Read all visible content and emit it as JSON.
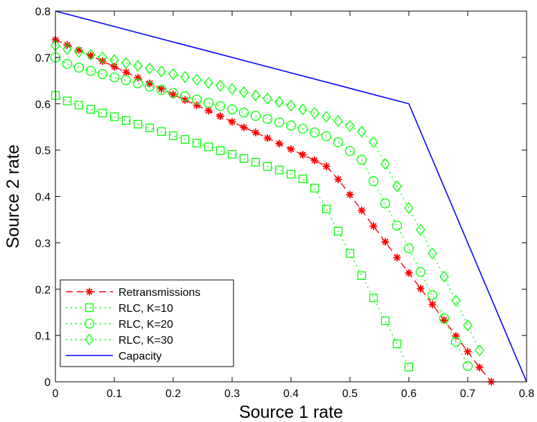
{
  "chart_data": {
    "type": "line",
    "xlabel": "Source 1 rate",
    "ylabel": "Source 2 rate",
    "xlim": [
      0,
      0.8
    ],
    "ylim": [
      0,
      0.8
    ],
    "xticks": [
      0,
      0.1,
      0.2,
      0.3,
      0.4,
      0.5,
      0.6,
      0.7,
      0.8
    ],
    "yticks": [
      0,
      0.1,
      0.2,
      0.3,
      0.4,
      0.5,
      0.6,
      0.7,
      0.8
    ],
    "xtick_labels": [
      "0",
      "0.1",
      "0.2",
      "0.3",
      "0.4",
      "0.5",
      "0.6",
      "0.7",
      "0.8"
    ],
    "ytick_labels": [
      "0",
      "0.1",
      "0.2",
      "0.3",
      "0.4",
      "0.5",
      "0.6",
      "0.7",
      "0.8"
    ],
    "grid": false,
    "legend_position": "bottom-left",
    "series": [
      {
        "name": "Retransmissions",
        "color": "#ff0000",
        "line_style": "dashed",
        "marker": "asterisk",
        "x": [
          0,
          0.02,
          0.04,
          0.06,
          0.08,
          0.1,
          0.12,
          0.14,
          0.16,
          0.18,
          0.2,
          0.22,
          0.24,
          0.26,
          0.28,
          0.3,
          0.32,
          0.34,
          0.36,
          0.38,
          0.4,
          0.42,
          0.44,
          0.46,
          0.48,
          0.5,
          0.52,
          0.54,
          0.56,
          0.58,
          0.6,
          0.62,
          0.64,
          0.66,
          0.68,
          0.7,
          0.72,
          0.74
        ],
        "y": [
          0.738,
          0.727,
          0.716,
          0.704,
          0.692,
          0.68,
          0.668,
          0.656,
          0.644,
          0.632,
          0.62,
          0.608,
          0.597,
          0.585,
          0.573,
          0.561,
          0.549,
          0.538,
          0.526,
          0.514,
          0.502,
          0.49,
          0.478,
          0.465,
          0.437,
          0.404,
          0.37,
          0.336,
          0.302,
          0.268,
          0.235,
          0.201,
          0.167,
          0.133,
          0.099,
          0.065,
          0.031,
          0.0
        ]
      },
      {
        "name": "RLC, K=10",
        "color": "#00ff00",
        "line_style": "dotted",
        "marker": "square",
        "x": [
          0,
          0.02,
          0.04,
          0.06,
          0.08,
          0.1,
          0.12,
          0.14,
          0.16,
          0.18,
          0.2,
          0.22,
          0.24,
          0.26,
          0.28,
          0.3,
          0.32,
          0.34,
          0.36,
          0.38,
          0.4,
          0.42,
          0.44,
          0.46,
          0.48,
          0.5,
          0.52,
          0.54,
          0.56,
          0.58,
          0.6
        ],
        "y": [
          0.618,
          0.606,
          0.597,
          0.588,
          0.58,
          0.572,
          0.564,
          0.556,
          0.548,
          0.54,
          0.531,
          0.523,
          0.515,
          0.507,
          0.499,
          0.491,
          0.482,
          0.474,
          0.465,
          0.457,
          0.448,
          0.438,
          0.418,
          0.373,
          0.325,
          0.277,
          0.229,
          0.181,
          0.132,
          0.082,
          0.032
        ]
      },
      {
        "name": "RLC, K=20",
        "color": "#00ff00",
        "line_style": "dotted",
        "marker": "circle",
        "x": [
          0,
          0.02,
          0.04,
          0.06,
          0.08,
          0.1,
          0.12,
          0.14,
          0.16,
          0.18,
          0.2,
          0.22,
          0.24,
          0.26,
          0.28,
          0.3,
          0.32,
          0.34,
          0.36,
          0.38,
          0.4,
          0.42,
          0.44,
          0.46,
          0.48,
          0.5,
          0.52,
          0.54,
          0.56,
          0.58,
          0.6,
          0.62,
          0.64,
          0.66,
          0.68,
          0.7
        ],
        "y": [
          0.7,
          0.686,
          0.678,
          0.671,
          0.664,
          0.657,
          0.651,
          0.644,
          0.637,
          0.63,
          0.623,
          0.616,
          0.609,
          0.602,
          0.595,
          0.588,
          0.581,
          0.574,
          0.567,
          0.56,
          0.553,
          0.546,
          0.538,
          0.53,
          0.517,
          0.498,
          0.479,
          0.433,
          0.385,
          0.337,
          0.288,
          0.237,
          0.187,
          0.137,
          0.086,
          0.034
        ]
      },
      {
        "name": "RLC, K=30",
        "color": "#00ff00",
        "line_style": "dotted",
        "marker": "diamond",
        "x": [
          0,
          0.02,
          0.04,
          0.06,
          0.08,
          0.1,
          0.12,
          0.14,
          0.16,
          0.18,
          0.2,
          0.22,
          0.24,
          0.26,
          0.28,
          0.3,
          0.32,
          0.34,
          0.36,
          0.38,
          0.4,
          0.42,
          0.44,
          0.46,
          0.48,
          0.5,
          0.52,
          0.54,
          0.56,
          0.58,
          0.6,
          0.62,
          0.64,
          0.66,
          0.68,
          0.7,
          0.72
        ],
        "y": [
          0.726,
          0.718,
          0.712,
          0.706,
          0.7,
          0.694,
          0.688,
          0.682,
          0.676,
          0.67,
          0.664,
          0.658,
          0.652,
          0.645,
          0.639,
          0.632,
          0.625,
          0.618,
          0.611,
          0.604,
          0.596,
          0.588,
          0.58,
          0.572,
          0.563,
          0.552,
          0.54,
          0.517,
          0.47,
          0.422,
          0.375,
          0.328,
          0.277,
          0.227,
          0.175,
          0.122,
          0.068
        ]
      },
      {
        "name": "Capacity",
        "color": "#0000ff",
        "line_style": "solid",
        "marker": "none",
        "x": [
          0,
          0.6,
          0.8
        ],
        "y": [
          0.8,
          0.6,
          0.0
        ]
      }
    ]
  }
}
